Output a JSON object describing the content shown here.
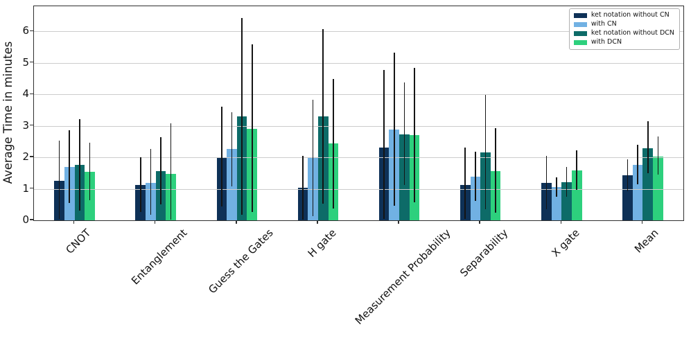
{
  "chart_data": {
    "type": "bar",
    "title": "",
    "xlabel": "",
    "ylabel": "Average Time in minutes",
    "categories": [
      "CNOT",
      "Entanglement",
      "Guess the Gates",
      "H gate",
      "Measurement Probability",
      "Separability",
      "X gate",
      "Mean"
    ],
    "series": [
      {
        "name": "ket notation without CN",
        "color": "#0e3157",
        "values": [
          1.25,
          1.12,
          2.0,
          1.03,
          2.31,
          1.12,
          1.19,
          1.43
        ],
        "whisker_low": [
          0.05,
          0.27,
          0.43,
          0.02,
          0.05,
          0.05,
          0.35,
          0.92
        ],
        "whisker_high": [
          2.52,
          2.0,
          3.6,
          2.04,
          4.78,
          2.31,
          2.04,
          1.93
        ]
      },
      {
        "name": "with CN",
        "color": "#71b1e3",
        "values": [
          1.7,
          1.19,
          2.26,
          1.98,
          2.88,
          1.38,
          1.05,
          1.77
        ],
        "whisker_low": [
          0.55,
          0.17,
          1.08,
          0.13,
          0.46,
          0.61,
          0.75,
          1.14
        ],
        "whisker_high": [
          2.85,
          2.26,
          3.43,
          3.84,
          5.32,
          2.17,
          1.36,
          2.4
        ]
      },
      {
        "name": "ket notation without DCN",
        "color": "#0d6b68",
        "values": [
          1.76,
          1.56,
          3.3,
          3.31,
          2.73,
          2.16,
          1.21,
          2.29
        ],
        "whisker_low": [
          0.3,
          0.5,
          0.17,
          0.53,
          1.12,
          0.35,
          0.74,
          1.49
        ],
        "whisker_high": [
          3.21,
          2.64,
          6.42,
          6.08,
          4.37,
          3.98,
          1.69,
          3.14
        ]
      },
      {
        "name": "with DCN",
        "color": "#2dd07d",
        "values": [
          1.55,
          1.47,
          2.9,
          2.44,
          2.71,
          1.56,
          1.58,
          2.02
        ],
        "whisker_low": [
          0.64,
          0.02,
          0.26,
          0.37,
          0.57,
          0.24,
          0.97,
          1.45
        ],
        "whisker_high": [
          2.47,
          3.08,
          5.58,
          4.5,
          4.84,
          2.93,
          2.23,
          2.66
        ]
      }
    ],
    "yticks": [
      0,
      1,
      2,
      3,
      4,
      5,
      6
    ],
    "ylim": [
      0,
      6.8
    ],
    "grid": "horizontal",
    "grid_color": "#cccccc",
    "errorbar_color": "#141414",
    "legend_position": "upper-right"
  }
}
